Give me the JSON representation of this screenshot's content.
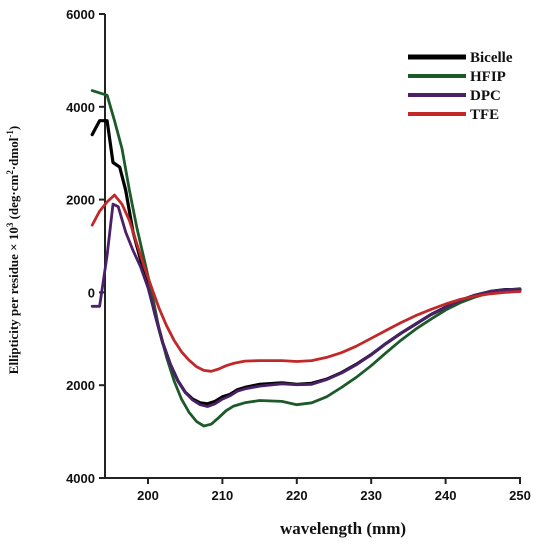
{
  "chart_data": {
    "type": "line",
    "xlabel": "wavelength (mm)",
    "ylabel_parts": [
      "Ellipticity per residue × 10",
      "3",
      " (deg·cm",
      "2",
      "·dmol",
      "-1",
      ")"
    ],
    "xlim": [
      192,
      250
    ],
    "ylim": [
      -4000,
      6000
    ],
    "x_ticks": [
      200,
      210,
      220,
      230,
      240,
      250
    ],
    "x_tick_labels": [
      "200",
      "210",
      "220",
      "230",
      "240",
      "250"
    ],
    "y_ticks": [
      6000,
      4000,
      2000,
      0,
      -2000,
      -4000
    ],
    "y_tick_labels": [
      "6000",
      "4000",
      "2000",
      "0",
      "2000",
      "4000"
    ],
    "grid": false,
    "legend_position": "top-right",
    "series": [
      {
        "name": "Bicelle",
        "color": "#000000",
        "x": [
          192.5,
          193.5,
          194.5,
          195.3,
          196.2,
          197,
          198,
          199,
          200,
          201,
          202,
          203,
          204,
          205,
          206,
          207,
          208,
          209,
          210,
          211,
          212,
          213,
          215,
          218,
          220,
          222,
          224,
          226,
          228,
          230,
          232,
          234,
          236,
          238,
          240,
          242,
          244,
          246,
          248,
          250
        ],
        "y": [
          3400,
          3700,
          3700,
          2800,
          2700,
          2200,
          1300,
          700,
          150,
          -500,
          -1100,
          -1550,
          -1900,
          -2150,
          -2300,
          -2380,
          -2400,
          -2350,
          -2250,
          -2200,
          -2100,
          -2050,
          -1980,
          -1950,
          -1980,
          -1960,
          -1870,
          -1730,
          -1550,
          -1340,
          -1100,
          -880,
          -680,
          -480,
          -320,
          -170,
          -60,
          20,
          60,
          60
        ]
      },
      {
        "name": "HFIP",
        "color": "#1d5a2a",
        "x": [
          192.5,
          193.5,
          194.5,
          195.5,
          196.5,
          197.5,
          198.5,
          199.5,
          200.5,
          201.5,
          202.5,
          203.5,
          204.5,
          205.5,
          206.5,
          207.5,
          208.5,
          209.5,
          210.5,
          211.5,
          213,
          215,
          218,
          220,
          222,
          224,
          226,
          228,
          230,
          232,
          234,
          236,
          238,
          240,
          242,
          244,
          246,
          248,
          250
        ],
        "y": [
          4350,
          4300,
          4250,
          3700,
          3100,
          2200,
          1400,
          700,
          0,
          -800,
          -1400,
          -1900,
          -2300,
          -2580,
          -2780,
          -2880,
          -2840,
          -2700,
          -2550,
          -2450,
          -2380,
          -2330,
          -2350,
          -2420,
          -2380,
          -2250,
          -2050,
          -1830,
          -1580,
          -1300,
          -1030,
          -790,
          -580,
          -380,
          -220,
          -100,
          0,
          50,
          80
        ]
      },
      {
        "name": "DPC",
        "color": "#4b2068",
        "x": [
          192.5,
          193.5,
          194.5,
          195.3,
          196,
          197,
          198,
          199,
          200,
          201,
          202,
          203,
          204,
          205,
          206,
          207,
          208,
          209,
          210,
          211,
          212,
          213,
          215,
          218,
          220,
          222,
          224,
          226,
          228,
          230,
          232,
          234,
          236,
          238,
          240,
          242,
          244,
          246,
          248,
          250
        ],
        "y": [
          -300,
          -300,
          800,
          1900,
          1850,
          1300,
          900,
          550,
          100,
          -500,
          -1100,
          -1550,
          -1900,
          -2150,
          -2320,
          -2420,
          -2460,
          -2400,
          -2300,
          -2230,
          -2130,
          -2080,
          -2020,
          -1970,
          -1990,
          -1980,
          -1880,
          -1740,
          -1560,
          -1340,
          -1100,
          -880,
          -680,
          -480,
          -320,
          -170,
          -60,
          20,
          60,
          60
        ]
      },
      {
        "name": "TFE",
        "color": "#c0282a",
        "x": [
          192.5,
          193.5,
          194.5,
          195.5,
          196.5,
          197.5,
          198.5,
          199.5,
          200.5,
          201.5,
          202.5,
          203.5,
          204.5,
          205.5,
          206.5,
          207.5,
          208.5,
          209.5,
          210.5,
          211.5,
          213,
          215,
          218,
          220,
          222,
          224,
          226,
          228,
          230,
          232,
          234,
          236,
          238,
          240,
          242,
          244,
          246,
          248,
          250
        ],
        "y": [
          1450,
          1750,
          1950,
          2100,
          1900,
          1550,
          1050,
          550,
          100,
          -350,
          -720,
          -1030,
          -1280,
          -1460,
          -1600,
          -1680,
          -1700,
          -1650,
          -1580,
          -1530,
          -1480,
          -1470,
          -1470,
          -1490,
          -1470,
          -1400,
          -1300,
          -1160,
          -990,
          -820,
          -650,
          -500,
          -370,
          -250,
          -150,
          -80,
          -30,
          0,
          20
        ]
      }
    ]
  }
}
